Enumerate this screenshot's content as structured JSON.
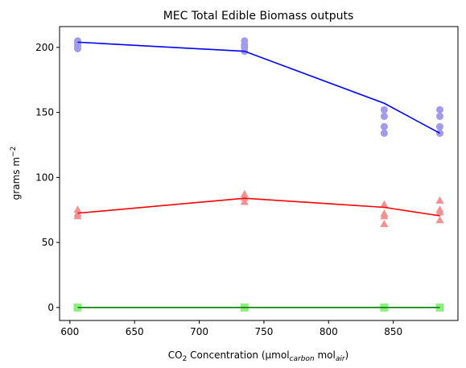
{
  "chart_data": {
    "type": "scatter",
    "title": "MEC Total Edible Biomass outputs",
    "xlabel": {
      "prefix": "CO",
      "sub1": "2",
      "middle": " Concentration (μmol",
      "sub2": "carbon",
      "middle2": " mol",
      "sub3": "air",
      "suffix": ")"
    },
    "ylabel": {
      "prefix": "grams m",
      "sup": "−2"
    },
    "xlim": [
      592,
      900
    ],
    "ylim": [
      -10,
      216
    ],
    "xticks": [
      600,
      650,
      700,
      750,
      800,
      850
    ],
    "yticks": [
      0,
      50,
      100,
      150,
      200
    ],
    "x_tick_labels": [
      "600",
      "650",
      "700",
      "750",
      "800",
      "850"
    ],
    "y_tick_labels": [
      "0",
      "50",
      "100",
      "150",
      "200"
    ],
    "grid": false,
    "series": [
      {
        "marker": "circle",
        "point_color": "#a19bea",
        "line_color": "#0000ff",
        "points": [
          {
            "x": 606,
            "y": 205
          },
          {
            "x": 606,
            "y": 203
          },
          {
            "x": 606,
            "y": 201
          },
          {
            "x": 606,
            "y": 199
          },
          {
            "x": 735,
            "y": 205
          },
          {
            "x": 735,
            "y": 202
          },
          {
            "x": 735,
            "y": 200
          },
          {
            "x": 735,
            "y": 197
          },
          {
            "x": 843,
            "y": 152
          },
          {
            "x": 843,
            "y": 147
          },
          {
            "x": 843,
            "y": 139
          },
          {
            "x": 843,
            "y": 134
          },
          {
            "x": 886,
            "y": 152
          },
          {
            "x": 886,
            "y": 147
          },
          {
            "x": 886,
            "y": 139
          },
          {
            "x": 886,
            "y": 134
          }
        ],
        "line": [
          {
            "x": 606,
            "y": 204
          },
          {
            "x": 735,
            "y": 197
          },
          {
            "x": 843,
            "y": 157
          },
          {
            "x": 886,
            "y": 134
          }
        ]
      },
      {
        "marker": "triangle",
        "point_color": "#f39090",
        "line_color": "#ff0000",
        "points": [
          {
            "x": 606,
            "y": 75
          },
          {
            "x": 606,
            "y": 72
          },
          {
            "x": 606,
            "y": 70
          },
          {
            "x": 735,
            "y": 87
          },
          {
            "x": 735,
            "y": 84
          },
          {
            "x": 735,
            "y": 81
          },
          {
            "x": 843,
            "y": 79
          },
          {
            "x": 843,
            "y": 72
          },
          {
            "x": 843,
            "y": 70
          },
          {
            "x": 843,
            "y": 64
          },
          {
            "x": 886,
            "y": 82
          },
          {
            "x": 886,
            "y": 75
          },
          {
            "x": 886,
            "y": 73
          },
          {
            "x": 886,
            "y": 67
          }
        ],
        "line": [
          {
            "x": 606,
            "y": 72.5
          },
          {
            "x": 735,
            "y": 84
          },
          {
            "x": 843,
            "y": 77
          },
          {
            "x": 886,
            "y": 70.5
          }
        ]
      },
      {
        "marker": "square",
        "point_color": "#8cf07e",
        "line_color": "#008000",
        "points": [
          {
            "x": 606,
            "y": 0
          },
          {
            "x": 735,
            "y": 0
          },
          {
            "x": 843,
            "y": 0
          },
          {
            "x": 886,
            "y": 0
          }
        ],
        "line": [
          {
            "x": 606,
            "y": 0
          },
          {
            "x": 735,
            "y": 0
          },
          {
            "x": 843,
            "y": 0
          },
          {
            "x": 886,
            "y": 0
          }
        ]
      }
    ]
  }
}
